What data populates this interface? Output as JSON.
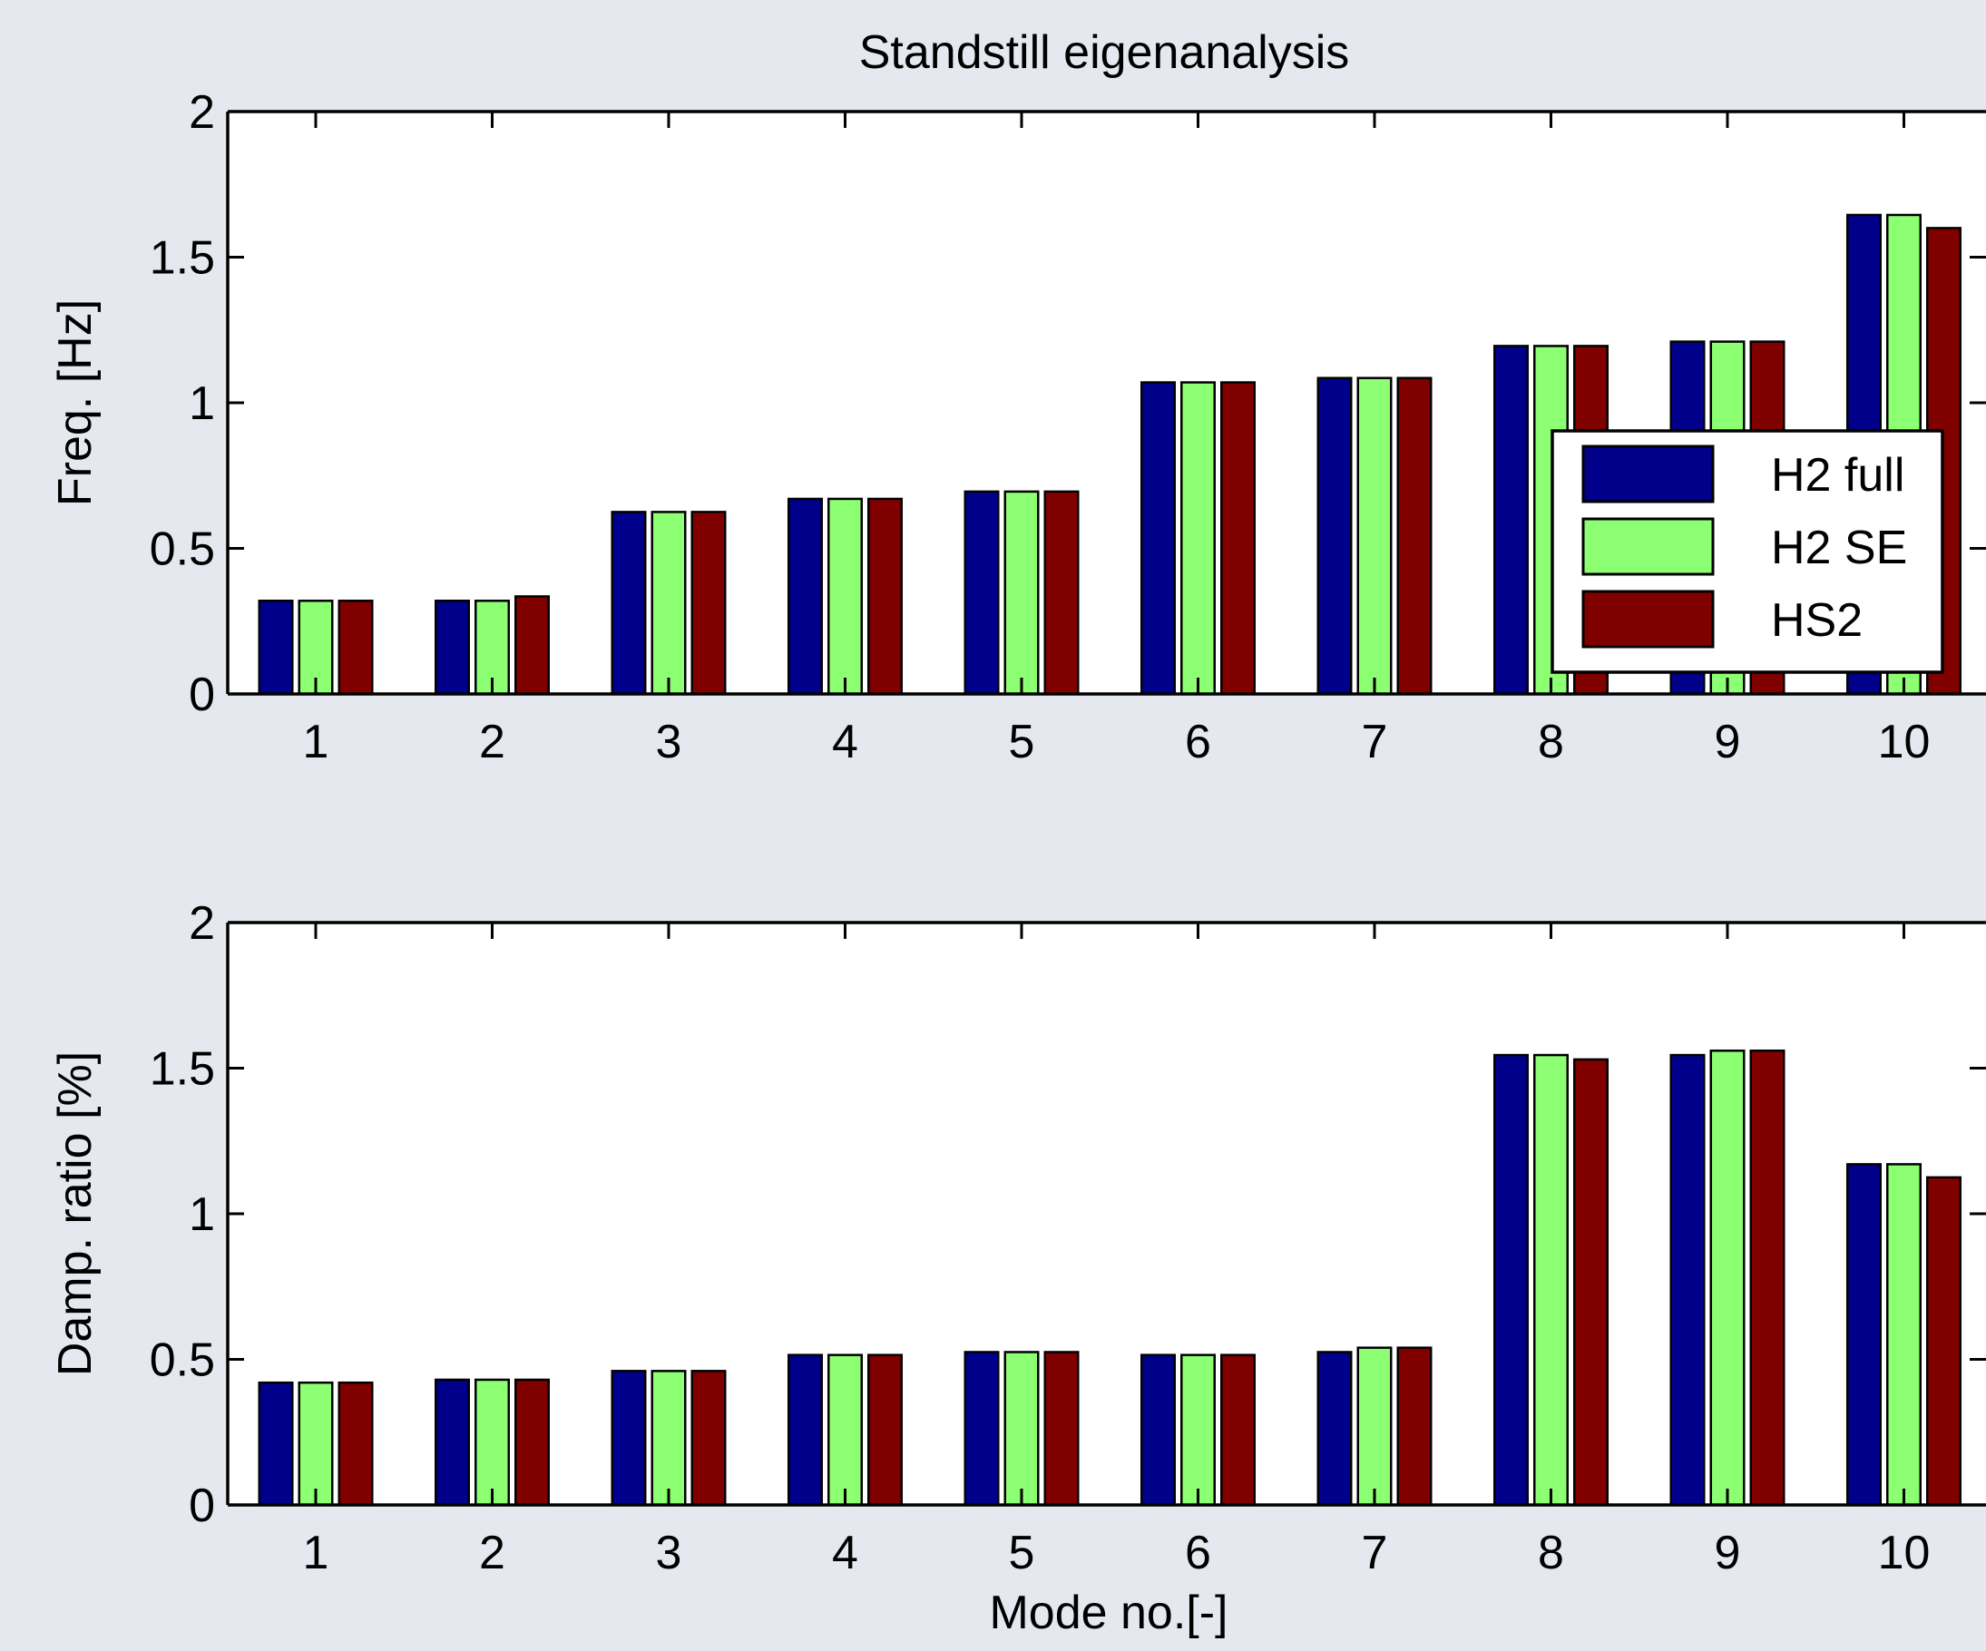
{
  "figure": {
    "title": "Standstill eigenanalysis"
  },
  "chart_data": [
    {
      "type": "bar",
      "title": "Standstill eigenanalysis",
      "xlabel": "",
      "ylabel": "Freq. [Hz]",
      "ylim": [
        0,
        2
      ],
      "yticks": [
        "0",
        "0.5",
        "1",
        "1.5",
        "2"
      ],
      "categories": [
        "1",
        "2",
        "3",
        "4",
        "5",
        "6",
        "7",
        "8",
        "9",
        "10"
      ],
      "grid": false,
      "legend": {
        "position": "right",
        "entries": [
          "H2 full",
          "H2 SE",
          "HS2"
        ]
      },
      "series": [
        {
          "name": "H2 full",
          "color": "#00008b",
          "values": [
            0.32,
            0.32,
            0.625,
            0.67,
            0.695,
            1.07,
            1.085,
            1.195,
            1.21,
            1.645
          ]
        },
        {
          "name": "H2 SE",
          "color": "#8cff73",
          "values": [
            0.32,
            0.32,
            0.625,
            0.67,
            0.695,
            1.07,
            1.085,
            1.195,
            1.21,
            1.645
          ]
        },
        {
          "name": "HS2",
          "color": "#800000",
          "values": [
            0.32,
            0.335,
            0.625,
            0.67,
            0.695,
            1.07,
            1.085,
            1.195,
            1.21,
            1.6
          ]
        }
      ]
    },
    {
      "type": "bar",
      "title": "",
      "xlabel": "Mode no.[-]",
      "ylabel": "Damp. ratio [%]",
      "ylim": [
        0,
        2
      ],
      "yticks": [
        "0",
        "0.5",
        "1",
        "1.5",
        "2"
      ],
      "categories": [
        "1",
        "2",
        "3",
        "4",
        "5",
        "6",
        "7",
        "8",
        "9",
        "10"
      ],
      "grid": false,
      "series": [
        {
          "name": "H2 full",
          "color": "#00008b",
          "values": [
            0.42,
            0.43,
            0.46,
            0.515,
            0.525,
            0.515,
            0.525,
            1.545,
            1.545,
            1.17
          ]
        },
        {
          "name": "H2 SE",
          "color": "#8cff73",
          "values": [
            0.42,
            0.43,
            0.46,
            0.515,
            0.525,
            0.515,
            0.54,
            1.545,
            1.56,
            1.17
          ]
        },
        {
          "name": "HS2",
          "color": "#800000",
          "values": [
            0.42,
            0.43,
            0.46,
            0.515,
            0.525,
            0.515,
            0.54,
            1.53,
            1.56,
            1.125
          ]
        }
      ]
    }
  ]
}
